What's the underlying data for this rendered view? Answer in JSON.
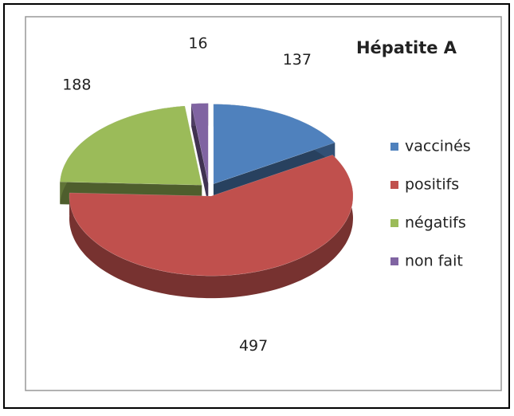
{
  "chart_data": {
    "type": "pie",
    "title": "Hépatite A",
    "categories": [
      "vaccinés",
      "positifs",
      "négatifs",
      "non fait"
    ],
    "values": [
      137,
      497,
      188,
      16
    ],
    "colors": [
      "#4f81bd",
      "#c0504d",
      "#9bbb59",
      "#8064a2"
    ],
    "legend": "right",
    "three_d": true,
    "exploded": true
  }
}
